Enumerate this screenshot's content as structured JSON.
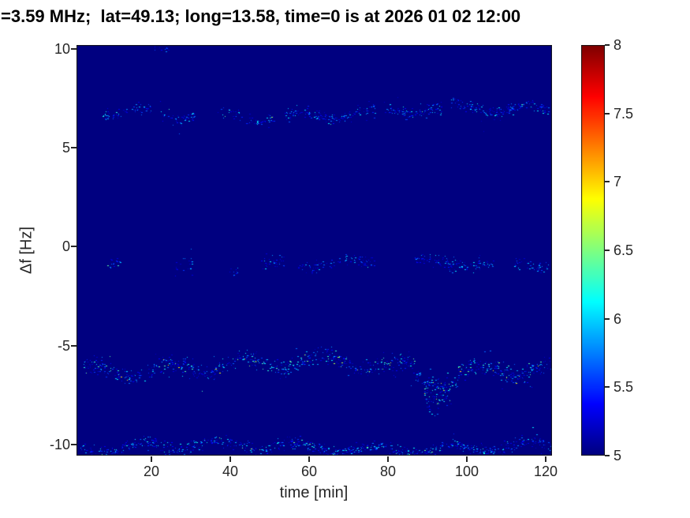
{
  "chart_data": {
    "type": "heatmap",
    "title": "=3.59 MHz;  lat=49.13; long=13.58, time=0 is at 2026 01 02 12:00",
    "xlabel": "time [min]",
    "ylabel": "Δf [Hz]",
    "x_ticks": [
      20,
      40,
      60,
      80,
      100,
      120
    ],
    "y_ticks": [
      10,
      5,
      0,
      -5,
      -10
    ],
    "x_range": [
      1,
      121.6
    ],
    "y_range": [
      -10.56,
      10.2
    ],
    "grid": false,
    "axis_color": "#262626",
    "background_color": "#ffffff",
    "plot_background_value": 5,
    "colorbar": {
      "position": "right",
      "ticks": [
        8,
        7.5,
        7,
        6.5,
        6,
        5.5,
        5
      ],
      "clim": [
        5,
        8
      ],
      "colormap": "jet"
    },
    "description": "Doppler spectrogram: scattered spectral-intensity traces (values ~5-7 on colorbar scale) along four horizontal frequency bands over 0-120 min; background at/below colormap minimum (~5).",
    "bands": [
      {
        "name": "band-top-edge",
        "center": 9.9,
        "spread": 0.15,
        "wobble": [
          0.05,
          0.05
        ],
        "vmax": 5.8,
        "bright_prob": 0.0,
        "vbright": 5.8,
        "segments": [
          [
            21,
            25,
            0.3,
            0
          ]
        ]
      },
      {
        "name": "band-plus-6.7Hz",
        "center": 6.7,
        "spread": 0.28,
        "wobble": [
          0.22,
          0.15
        ],
        "vmax": 6.2,
        "bright_prob": 0.02,
        "vbright": 6.6,
        "segments": [
          [
            7,
            31,
            0.5,
            0
          ],
          [
            37,
            52,
            0.55,
            0
          ],
          [
            54,
            77,
            0.7,
            0
          ],
          [
            79,
            95,
            0.6,
            0.1
          ],
          [
            96,
            122,
            0.75,
            0.2
          ]
        ]
      },
      {
        "name": "band-minus-0.9Hz",
        "center": -0.9,
        "spread": 0.3,
        "wobble": [
          0.18,
          0.12
        ],
        "vmax": 6.1,
        "bright_prob": 0.01,
        "vbright": 6.4,
        "segments": [
          [
            9,
            12,
            0.45,
            0
          ],
          [
            26,
            31,
            0.4,
            0
          ],
          [
            40,
            43,
            0.35,
            0
          ],
          [
            48,
            54,
            0.45,
            0
          ],
          [
            56,
            77,
            0.5,
            0
          ],
          [
            87,
            107,
            0.65,
            0.05
          ],
          [
            112,
            121,
            0.55,
            0.1
          ]
        ]
      },
      {
        "name": "band-minus-6Hz",
        "center": -6.05,
        "spread": 0.4,
        "wobble": [
          0.3,
          0.25
        ],
        "vmax": 6.4,
        "bright_prob": 0.05,
        "vbright": 7.0,
        "segments": [
          [
            3,
            34,
            0.8,
            0
          ],
          [
            34,
            58,
            0.78,
            -0.05
          ],
          [
            58,
            87,
            0.85,
            0.05
          ],
          [
            87,
            98,
            0.95,
            -0.45
          ],
          [
            89,
            96,
            0.8,
            -1.1
          ],
          [
            90,
            93,
            0.6,
            -1.6
          ],
          [
            98,
            122,
            0.88,
            0
          ]
        ]
      },
      {
        "name": "band-minus-10Hz",
        "center": -10.15,
        "spread": 0.3,
        "wobble": [
          0.2,
          0.15
        ],
        "vmax": 6.2,
        "bright_prob": 0.03,
        "vbright": 6.6,
        "segments": [
          [
            2,
            30,
            0.6,
            0
          ],
          [
            30,
            55,
            0.7,
            0
          ],
          [
            55,
            80,
            0.75,
            0
          ],
          [
            80,
            122,
            0.75,
            0
          ]
        ]
      }
    ]
  }
}
